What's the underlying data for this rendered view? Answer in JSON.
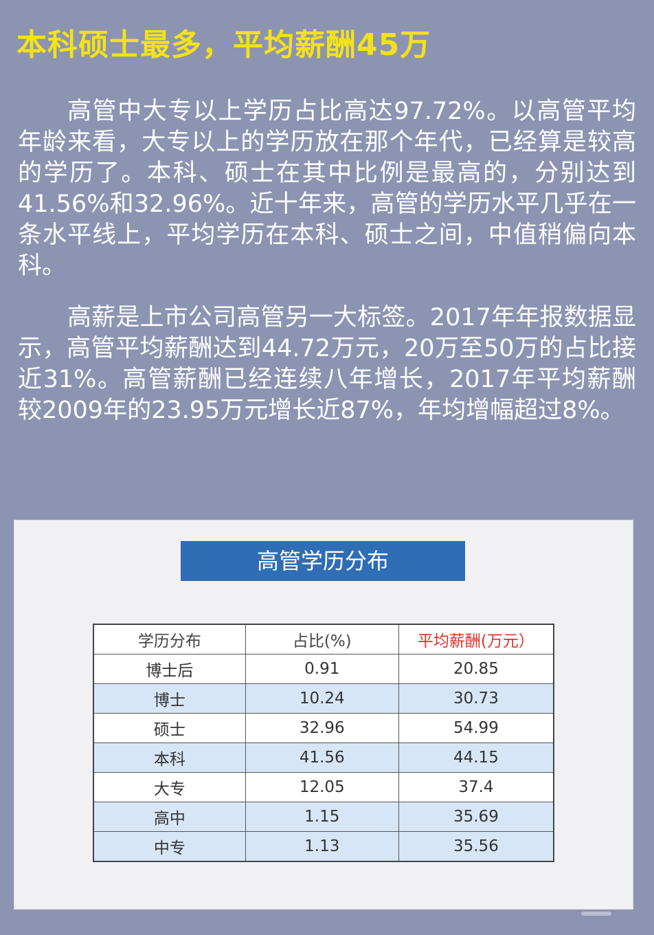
{
  "headline": "本科硕士最多，平均薪酬45万",
  "paragraphs": [
    "高管中大专以上学历占比高达97.72%。以高管平均年龄来看，大专以上的学历放在那个年代，已经算是较高的学历了。本科、硕士在其中比例是最高的，分别达到41.56%和32.96%。近十年来，高管的学历水平几乎在一条水平线上，平均学历在本科、硕士之间，中值稍偏向本科。",
    "高薪是上市公司高管另一大标签。2017年年报数据显示，高管平均薪酬达到44.72万元，20万至50万的占比接近31%。高管薪酬已经连续八年增长，2017年平均薪酬较2009年的23.95万元增长近87%，年均增幅超过8%。"
  ],
  "table": {
    "title": "高管学历分布",
    "headers": [
      "学历分布",
      "占比(%)",
      "平均薪酬(万元）"
    ],
    "rows": [
      [
        "博士后",
        "0.91",
        "20.85"
      ],
      [
        "博士",
        "10.24",
        "30.73"
      ],
      [
        "硕士",
        "32.96",
        "54.99"
      ],
      [
        "本科",
        "41.56",
        "44.15"
      ],
      [
        "大专",
        "12.05",
        "37.4"
      ],
      [
        "高中",
        "1.15",
        "35.69"
      ],
      [
        "中专",
        "1.13",
        "35.56"
      ]
    ]
  },
  "colors": {
    "background": "#8c94b2",
    "headline": "#f3e21a",
    "title_bar": "#2f6db4",
    "salary_header": "#d9342b",
    "row_alt": "#d7e6f6"
  }
}
